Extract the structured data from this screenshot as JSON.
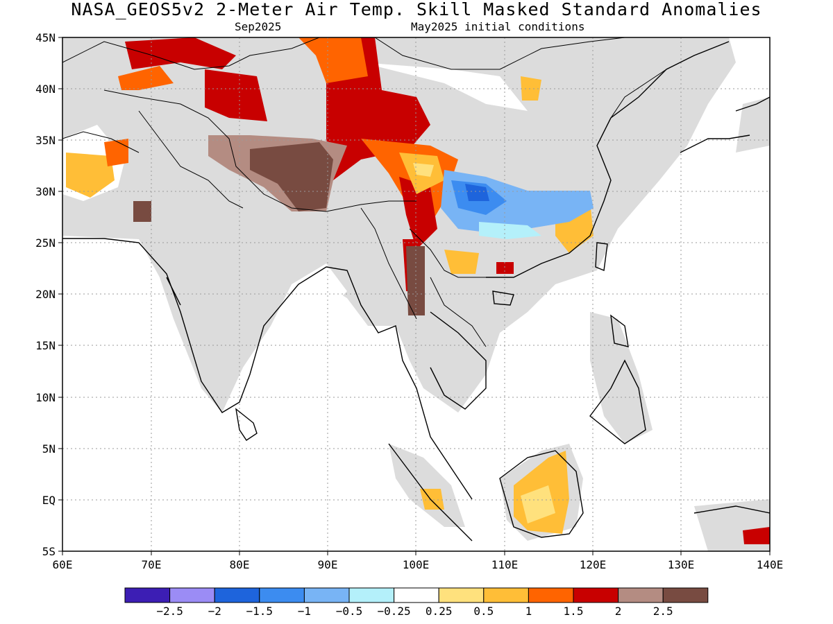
{
  "title": "NASA_GEOS5v2 2-Meter Air Temp. Skill Masked Standard Anomalies",
  "subtitle_left": "Sep2025",
  "subtitle_right": "May2025 initial conditions",
  "map": {
    "lon_range": [
      60,
      140
    ],
    "lat_range": [
      -5,
      45
    ],
    "x_ticks": [
      "60E",
      "70E",
      "80E",
      "90E",
      "100E",
      "110E",
      "120E",
      "130E",
      "140E"
    ],
    "y_ticks": [
      "45N",
      "40N",
      "35N",
      "30N",
      "25N",
      "20N",
      "15N",
      "10N",
      "5N",
      "EQ",
      "5S"
    ],
    "mask_color": "#dcdcdc",
    "grid": "dotted"
  },
  "colorbar": {
    "colors": [
      "#3c1eb4",
      "#9b8cf5",
      "#1e64dc",
      "#3c8cf0",
      "#78b4f5",
      "#b4f0fa",
      "#ffffff",
      "#ffe17d",
      "#ffbe37",
      "#ff6400",
      "#c80000",
      "#b48c82",
      "#784b41"
    ],
    "labels": [
      "-2.5",
      "-2",
      "-1.5",
      "-1",
      "-0.5",
      "-0.25",
      "0.25",
      "0.5",
      "1",
      "1.5",
      "2",
      "2.5"
    ]
  }
}
